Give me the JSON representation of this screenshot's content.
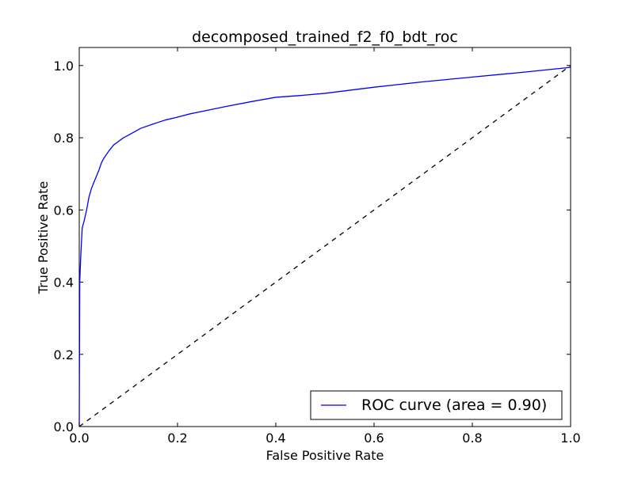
{
  "chart_data": {
    "type": "line",
    "title": "decomposed_trained_f2_f0_bdt_roc",
    "xlabel": "False Positive Rate",
    "ylabel": "True Positive Rate",
    "xlim": [
      0.0,
      1.0
    ],
    "ylim": [
      0.0,
      1.05
    ],
    "x_ticks": [
      0.0,
      0.2,
      0.4,
      0.6,
      0.8,
      1.0
    ],
    "x_tick_labels": [
      "0.0",
      "0.2",
      "0.4",
      "0.6",
      "0.8",
      "1.0"
    ],
    "y_ticks": [
      0.0,
      0.2,
      0.4,
      0.6,
      0.8,
      1.0
    ],
    "y_tick_labels": [
      "0.0",
      "0.2",
      "0.4",
      "0.6",
      "0.8",
      "1.0"
    ],
    "grid": false,
    "legend_placement": "lower-right",
    "series": [
      {
        "name": "ROC curve (area = 0.90)",
        "color": "#0000ff",
        "style": "solid",
        "x": [
          0.0,
          0.001,
          0.003,
          0.006,
          0.01,
          0.015,
          0.02,
          0.025,
          0.03,
          0.04,
          0.045,
          0.05,
          0.06,
          0.07,
          0.08,
          0.09,
          0.1,
          0.125,
          0.15,
          0.175,
          0.2,
          0.225,
          0.25,
          0.3,
          0.35,
          0.4,
          0.45,
          0.5,
          0.6,
          0.7,
          0.8,
          0.9,
          1.0
        ],
        "y": [
          0.0,
          0.4,
          0.47,
          0.55,
          0.57,
          0.6,
          0.637,
          0.66,
          0.677,
          0.71,
          0.73,
          0.743,
          0.763,
          0.78,
          0.79,
          0.8,
          0.807,
          0.826,
          0.838,
          0.849,
          0.857,
          0.866,
          0.873,
          0.887,
          0.9,
          0.912,
          0.917,
          0.923,
          0.94,
          0.955,
          0.968,
          0.981,
          0.995
        ]
      },
      {
        "name": "",
        "color": "#000000",
        "style": "dashed",
        "x": [
          0.0,
          1.0
        ],
        "y": [
          0.0,
          1.0
        ]
      }
    ]
  }
}
